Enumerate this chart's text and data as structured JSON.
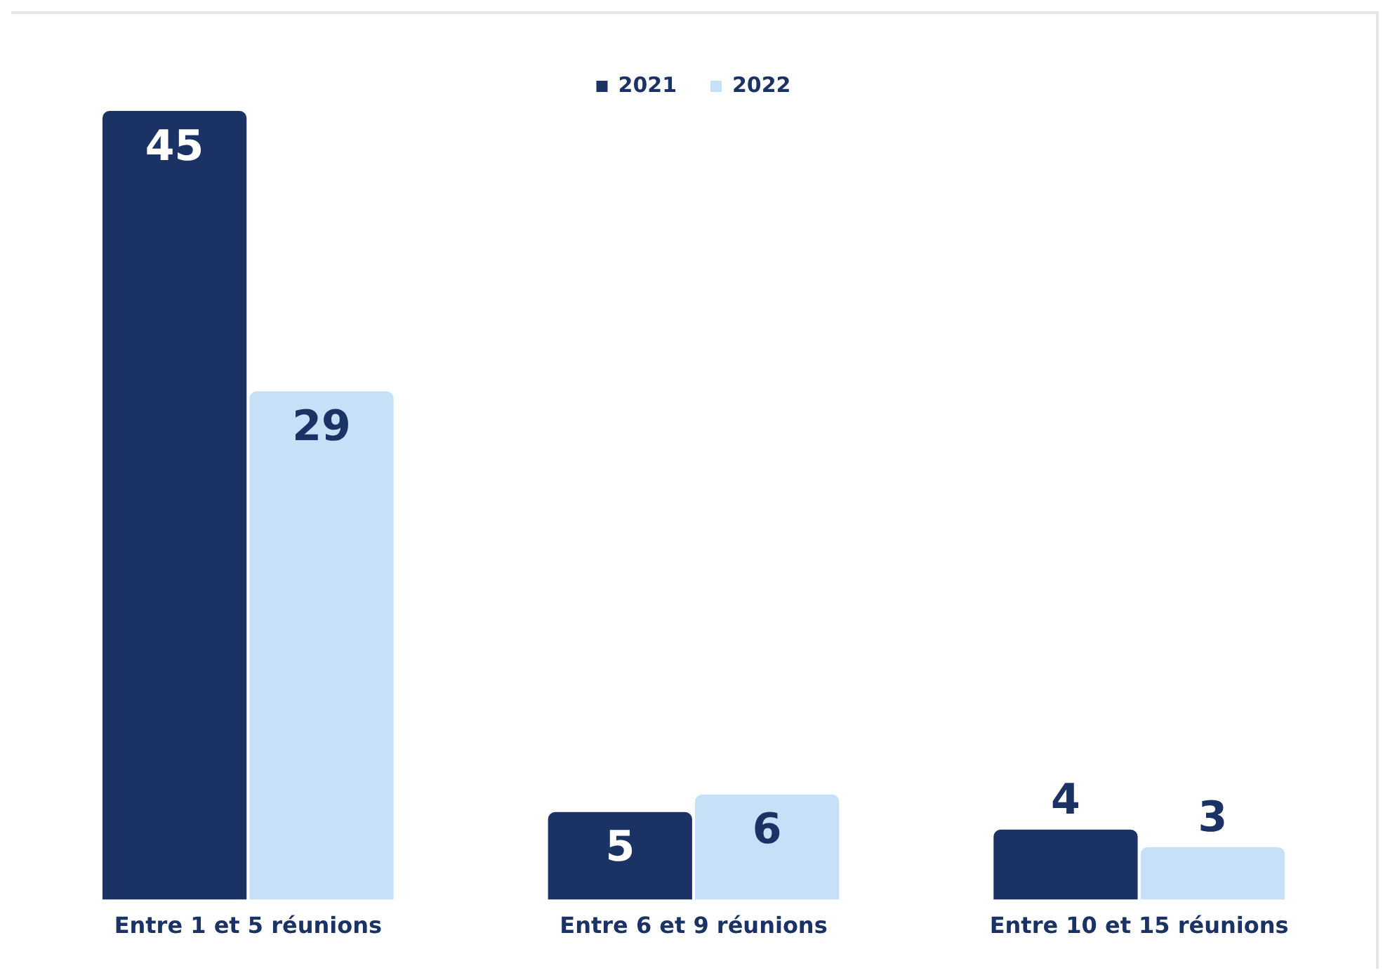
{
  "chart_data": {
    "type": "bar",
    "categories": [
      "Entre 1 et 5 réunions",
      "Entre 6 et 9 réunions",
      "Entre 10 et 15 réunions"
    ],
    "series": [
      {
        "name": "2021",
        "color": "#1b3364",
        "values": [
          45,
          5,
          4
        ]
      },
      {
        "name": "2022",
        "color": "#c5e0f7",
        "values": [
          29,
          6,
          3
        ]
      }
    ],
    "data_labels": true,
    "legend": "top",
    "grid": false
  }
}
